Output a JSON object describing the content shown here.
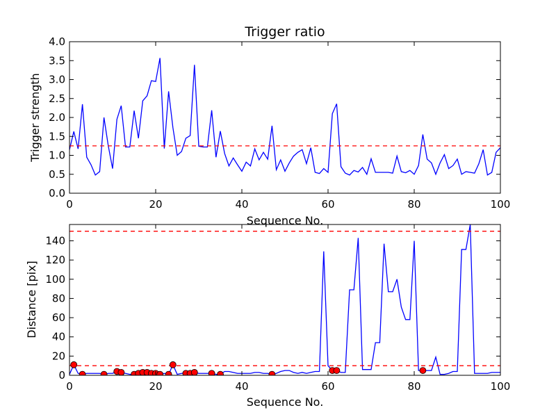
{
  "chart_data": [
    {
      "type": "line",
      "title": "Trigger ratio",
      "xlabel": "Sequence No.",
      "ylabel": "Trigger strength",
      "xlim": [
        0,
        100
      ],
      "ylim": [
        0,
        4
      ],
      "xticks": [
        "0",
        "20",
        "40",
        "60",
        "80",
        "100"
      ],
      "yticks": [
        "0.0",
        "0.5",
        "1.0",
        "1.5",
        "2.0",
        "2.5",
        "3.0",
        "3.5",
        "4.0"
      ],
      "grid": false,
      "line_color": "#0000ff",
      "threshold_color": "#ff0000",
      "thresholds": [
        1.25
      ],
      "x": [
        0,
        1,
        2,
        3,
        4,
        5,
        6,
        7,
        8,
        9,
        10,
        11,
        12,
        13,
        14,
        15,
        16,
        17,
        18,
        19,
        20,
        21,
        22,
        23,
        24,
        25,
        26,
        27,
        28,
        29,
        30,
        31,
        32,
        33,
        34,
        35,
        36,
        37,
        38,
        39,
        40,
        41,
        42,
        43,
        44,
        45,
        46,
        47,
        48,
        49,
        50,
        51,
        52,
        53,
        54,
        55,
        56,
        57,
        58,
        59,
        60,
        61,
        62,
        63,
        64,
        65,
        66,
        67,
        68,
        69,
        70,
        71,
        72,
        73,
        74,
        75,
        76,
        77,
        78,
        79,
        80,
        81,
        82,
        83,
        84,
        85,
        86,
        87,
        88,
        89,
        90,
        91,
        92,
        93,
        94,
        95,
        96,
        97,
        98,
        99,
        100
      ],
      "y": [
        1.15,
        1.63,
        1.17,
        2.35,
        0.95,
        0.75,
        0.48,
        0.57,
        2.0,
        1.25,
        0.65,
        1.95,
        2.31,
        1.22,
        1.22,
        2.18,
        1.45,
        2.44,
        2.57,
        2.97,
        2.95,
        3.57,
        1.18,
        2.69,
        1.73,
        1.0,
        1.1,
        1.45,
        1.52,
        3.39,
        1.24,
        1.22,
        1.22,
        2.19,
        0.95,
        1.64,
        1.05,
        0.72,
        0.93,
        0.75,
        0.58,
        0.82,
        0.72,
        1.17,
        0.88,
        1.08,
        0.9,
        1.78,
        0.62,
        0.88,
        0.58,
        0.8,
        0.98,
        1.08,
        1.15,
        0.78,
        1.2,
        0.55,
        0.52,
        0.65,
        0.55,
        2.1,
        2.36,
        0.7,
        0.53,
        0.48,
        0.6,
        0.56,
        0.68,
        0.5,
        0.91,
        0.55,
        0.55,
        0.55,
        0.55,
        0.53,
        0.98,
        0.57,
        0.54,
        0.6,
        0.5,
        0.73,
        1.55,
        0.9,
        0.8,
        0.5,
        0.8,
        1.02,
        0.65,
        0.73,
        0.9,
        0.5,
        0.57,
        0.55,
        0.53,
        0.78,
        1.15,
        0.48,
        0.55,
        1.08,
        1.2
      ]
    },
    {
      "type": "line",
      "title": "",
      "xlabel": "Sequence No.",
      "ylabel": "Distance [pix]",
      "xlim": [
        0,
        100
      ],
      "ylim": [
        0,
        157
      ],
      "xticks": [
        "0",
        "20",
        "40",
        "60",
        "80",
        "100"
      ],
      "yticks": [
        "0",
        "20",
        "40",
        "60",
        "80",
        "100",
        "120",
        "140"
      ],
      "grid": false,
      "line_color": "#0000ff",
      "threshold_color": "#ff0000",
      "marker_color": "#ff0000",
      "thresholds": [
        10,
        150
      ],
      "x": [
        0,
        1,
        2,
        3,
        4,
        5,
        6,
        7,
        8,
        9,
        10,
        11,
        12,
        13,
        14,
        15,
        16,
        17,
        18,
        19,
        20,
        21,
        22,
        23,
        24,
        25,
        26,
        27,
        28,
        29,
        30,
        31,
        32,
        33,
        34,
        35,
        36,
        37,
        38,
        39,
        40,
        41,
        42,
        43,
        44,
        45,
        46,
        47,
        48,
        49,
        50,
        51,
        52,
        53,
        54,
        55,
        56,
        57,
        58,
        59,
        60,
        61,
        62,
        63,
        64,
        65,
        66,
        67,
        68,
        69,
        70,
        71,
        72,
        73,
        74,
        75,
        76,
        77,
        78,
        79,
        80,
        81,
        82,
        83,
        84,
        85,
        86,
        87,
        88,
        89,
        90,
        91,
        92,
        93,
        94,
        95,
        96,
        97,
        98,
        99,
        100
      ],
      "y": [
        1,
        11,
        2,
        1,
        2,
        2,
        2,
        2,
        1,
        2,
        2,
        4,
        3,
        2,
        1,
        1,
        2,
        3,
        3,
        2,
        2,
        1,
        2,
        1,
        11,
        1,
        2,
        2,
        2,
        3,
        2,
        2,
        2,
        2,
        1,
        1,
        4,
        4,
        3,
        2,
        2,
        2,
        2,
        3,
        3,
        2,
        2,
        1,
        2,
        4,
        5,
        5,
        3,
        2,
        3,
        2,
        3,
        4,
        4,
        129,
        10,
        5,
        5,
        3,
        3,
        89,
        89,
        143,
        6,
        6,
        6,
        34,
        34,
        137,
        87,
        87,
        100,
        71,
        58,
        58,
        140,
        5,
        5,
        5,
        5,
        19,
        1,
        1,
        2,
        4,
        4,
        131,
        131,
        157,
        2,
        2,
        2,
        2,
        3,
        3,
        3
      ],
      "highlighted_points": [
        {
          "x": 1,
          "y": 11
        },
        {
          "x": 3,
          "y": 1
        },
        {
          "x": 8,
          "y": 1
        },
        {
          "x": 11,
          "y": 4
        },
        {
          "x": 12,
          "y": 3
        },
        {
          "x": 15,
          "y": 1
        },
        {
          "x": 16,
          "y": 2
        },
        {
          "x": 17,
          "y": 3
        },
        {
          "x": 18,
          "y": 3
        },
        {
          "x": 19,
          "y": 2
        },
        {
          "x": 20,
          "y": 2
        },
        {
          "x": 21,
          "y": 1
        },
        {
          "x": 23,
          "y": 1
        },
        {
          "x": 24,
          "y": 11
        },
        {
          "x": 27,
          "y": 2
        },
        {
          "x": 28,
          "y": 2
        },
        {
          "x": 29,
          "y": 3
        },
        {
          "x": 33,
          "y": 2
        },
        {
          "x": 35,
          "y": 1
        },
        {
          "x": 47,
          "y": 1
        },
        {
          "x": 61,
          "y": 5
        },
        {
          "x": 62,
          "y": 5
        },
        {
          "x": 82,
          "y": 5
        }
      ]
    }
  ]
}
